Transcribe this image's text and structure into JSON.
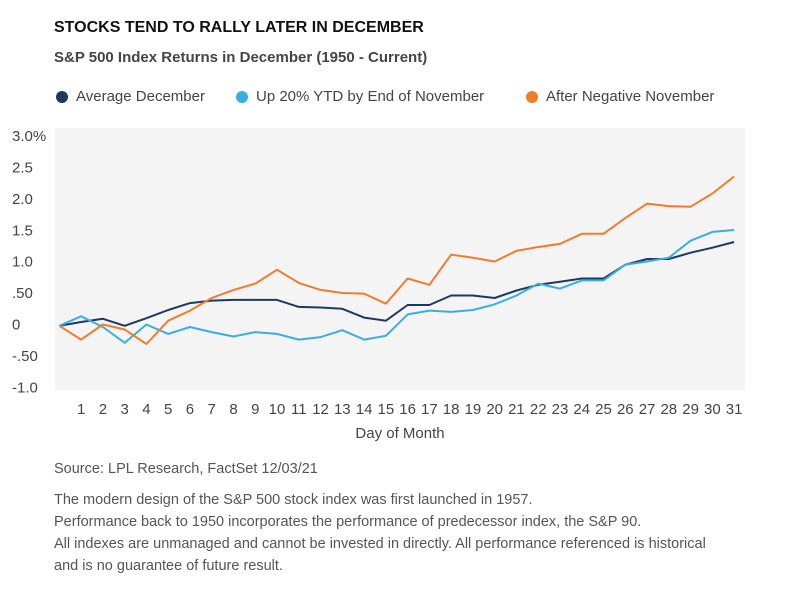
{
  "chart_data": {
    "type": "line",
    "title": "STOCKS TEND TO RALLY LATER IN DECEMBER",
    "subtitle": "S&P 500 Index Returns in December (1950 - Current)",
    "x_label": "Day of Month",
    "x": [
      0,
      1,
      2,
      3,
      4,
      5,
      6,
      7,
      8,
      9,
      10,
      11,
      12,
      13,
      14,
      15,
      16,
      17,
      18,
      19,
      20,
      21,
      22,
      23,
      24,
      25,
      26,
      27,
      28,
      29,
      30,
      31
    ],
    "xlim": [
      -0.2,
      31.5
    ],
    "xticks": [
      1,
      2,
      3,
      4,
      5,
      6,
      7,
      8,
      9,
      10,
      11,
      12,
      13,
      14,
      15,
      16,
      17,
      18,
      19,
      20,
      21,
      22,
      23,
      24,
      25,
      26,
      27,
      28,
      29,
      30,
      31
    ],
    "ylim": [
      -1.02,
      3.14
    ],
    "yticks": [
      {
        "value": 3,
        "label": "3.0%"
      },
      2.5,
      {
        "value": 2,
        "label": "2.0"
      },
      1.5,
      {
        "value": 1,
        "label": "1.0"
      },
      {
        "value": 0.5,
        "label": ".50"
      },
      0,
      {
        "value": -0.5,
        "label": "-.50"
      },
      {
        "value": -1,
        "label": "-1.0"
      }
    ],
    "grid": false,
    "series": [
      {
        "name": "Average December",
        "color": "#1b3a63",
        "values": [
          0,
          0.06,
          0.11,
          0,
          0.12,
          0.25,
          0.36,
          0.4,
          0.41,
          0.41,
          0.41,
          0.3,
          0.29,
          0.27,
          0.13,
          0.08,
          0.33,
          0.33,
          0.48,
          0.48,
          0.44,
          0.56,
          0.65,
          0.7,
          0.75,
          0.75,
          0.97,
          1.06,
          1.06,
          1.16,
          1.24,
          1.33
        ]
      },
      {
        "name": "Up 20% YTD by End of November",
        "color": "#3aaee0",
        "values": [
          0,
          0.15,
          -0.02,
          -0.27,
          0.02,
          -0.13,
          -0.02,
          -0.1,
          -0.17,
          -0.1,
          -0.13,
          -0.22,
          -0.18,
          -0.07,
          -0.22,
          -0.16,
          0.18,
          0.24,
          0.22,
          0.25,
          0.34,
          0.48,
          0.67,
          0.59,
          0.72,
          0.72,
          0.97,
          1.02,
          1.08,
          1.35,
          1.49,
          1.52
        ]
      },
      {
        "name": "After Negative November",
        "color": "#ee7d2b",
        "values": [
          0,
          -0.22,
          0.02,
          -0.06,
          -0.29,
          0.08,
          0.24,
          0.44,
          0.57,
          0.67,
          0.89,
          0.68,
          0.57,
          0.52,
          0.51,
          0.35,
          0.75,
          0.65,
          1.13,
          1.08,
          1.02,
          1.19,
          1.25,
          1.3,
          1.46,
          1.46,
          1.71,
          1.94,
          1.9,
          1.89,
          2.1,
          2.37
        ]
      }
    ],
    "source": "Source: LPL Research, FactSet  12/03/21",
    "notes": [
      "The modern design of the S&P 500 stock index was first launched in 1957.",
      "Performance back to 1950 incorporates the performance of predecessor index, the S&P 90.",
      "All indexes are unmanaged and cannot be invested in directly. All performance referenced is historical",
      "and is no guarantee of future result."
    ]
  }
}
